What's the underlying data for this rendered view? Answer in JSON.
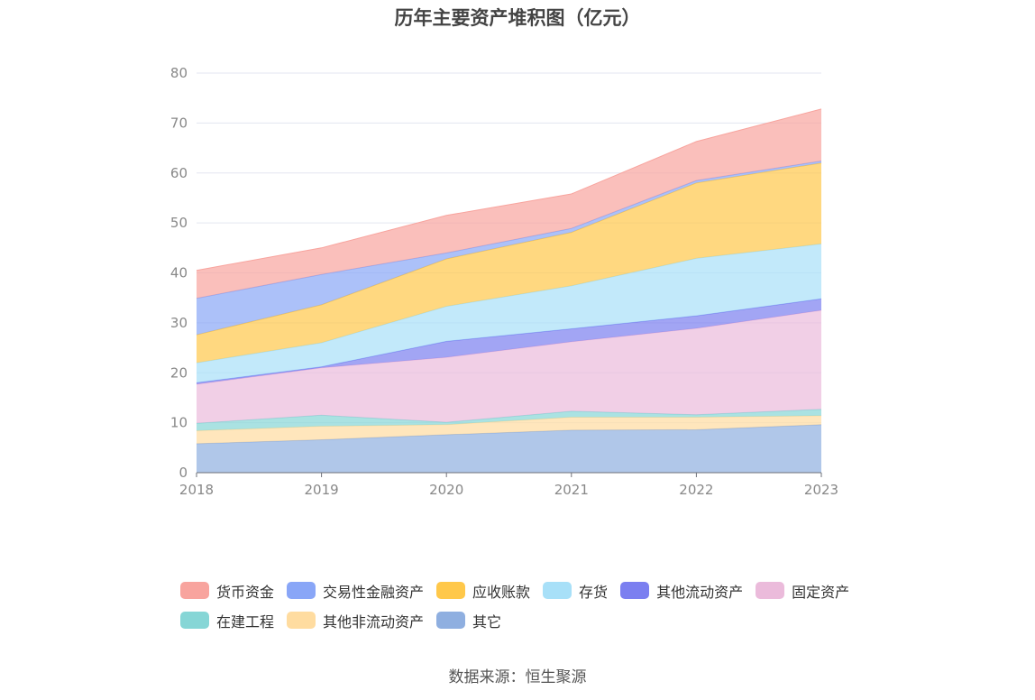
{
  "chart_data": {
    "type": "area",
    "stacked": true,
    "title": "历年主要资产堆积图（亿元）",
    "source": "数据来源：恒生聚源",
    "categories": [
      "2018",
      "2019",
      "2020",
      "2021",
      "2022",
      "2023"
    ],
    "ylim": [
      0,
      80
    ],
    "yticks": [
      0,
      10,
      20,
      30,
      40,
      50,
      60,
      70,
      80
    ],
    "grid": true,
    "legend_position": "bottom",
    "series": [
      {
        "name": "其它",
        "color": "#8fafe0",
        "values": [
          5.8,
          6.6,
          7.6,
          8.5,
          8.6,
          9.6
        ]
      },
      {
        "name": "其他非流动资产",
        "color": "#ffdca0",
        "values": [
          2.6,
          2.7,
          2.0,
          2.6,
          2.5,
          1.8
        ]
      },
      {
        "name": "在建工程",
        "color": "#86d6d6",
        "values": [
          1.5,
          2.2,
          0.5,
          1.2,
          0.5,
          1.3
        ]
      },
      {
        "name": "固定资产",
        "color": "#ebbbdb",
        "values": [
          7.8,
          9.5,
          13.0,
          13.9,
          17.3,
          19.8
        ]
      },
      {
        "name": "其他流动资产",
        "color": "#7b7ff0",
        "values": [
          0.3,
          0.2,
          3.2,
          2.6,
          2.5,
          2.3
        ]
      },
      {
        "name": "存货",
        "color": "#a8e0f8",
        "values": [
          4.0,
          4.8,
          7.0,
          8.6,
          11.5,
          11.0
        ]
      },
      {
        "name": "应收账款",
        "color": "#ffc84a",
        "values": [
          5.6,
          7.6,
          9.5,
          10.7,
          15.1,
          16.2
        ]
      },
      {
        "name": "交易性金融资产",
        "color": "#89a6f7",
        "values": [
          7.3,
          6.1,
          1.2,
          0.8,
          0.5,
          0.4
        ]
      },
      {
        "name": "货币资金",
        "color": "#f8a49e",
        "values": [
          5.6,
          5.3,
          7.5,
          6.9,
          7.8,
          10.4
        ]
      }
    ],
    "legend": [
      [
        "货币资金",
        "交易性金融资产",
        "应收账款",
        "存货",
        "其他流动资产",
        "固定资产"
      ],
      [
        "在建工程",
        "其他非流动资产",
        "其它"
      ]
    ]
  }
}
